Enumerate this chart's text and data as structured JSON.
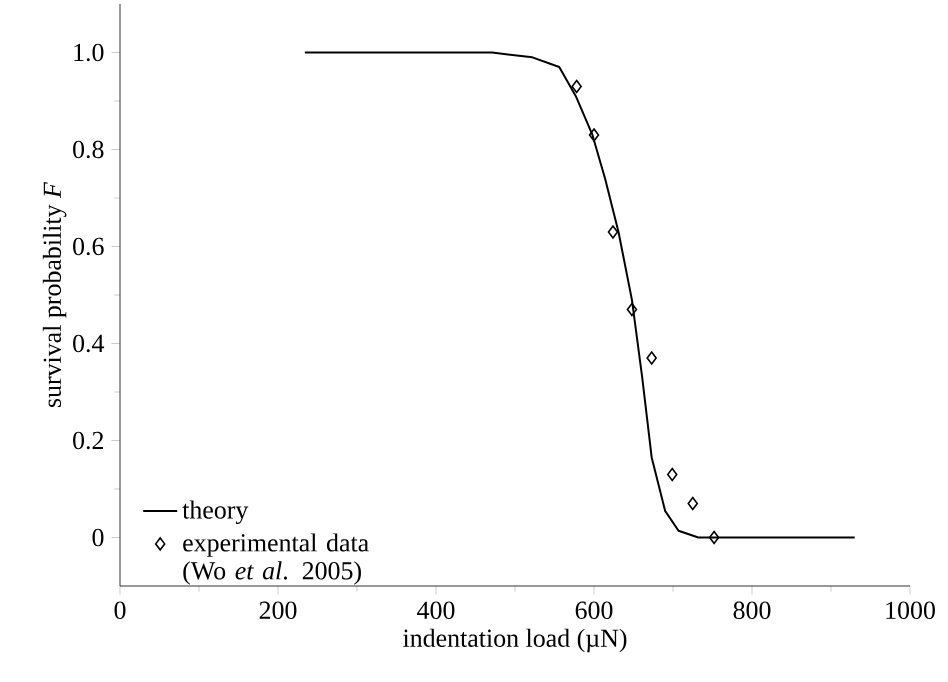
{
  "chart_data": {
    "type": "line",
    "xlabel": "indentation load (µN)",
    "ylabel": "survival probability *F*",
    "xlim": [
      0,
      1000
    ],
    "ylim": [
      -0.1,
      1.1
    ],
    "xticks": [
      0,
      200,
      400,
      600,
      800,
      1000
    ],
    "yticks": [
      0,
      0.2,
      0.4,
      0.6,
      0.8,
      {
        "value": 1.0,
        "label": "1.0"
      }
    ],
    "legend": "bottom left",
    "series": [
      {
        "name": "theory",
        "color": "#000000",
        "marker": "none",
        "line_style": "solid",
        "x": [
          234,
          471,
          522,
          556,
          577,
          598,
          614,
          631,
          648,
          661,
          673,
          690,
          707,
          732,
          930
        ],
        "values": [
          1.0,
          1.0,
          0.99,
          0.97,
          0.91,
          0.83,
          0.74,
          0.63,
          0.49,
          0.33,
          0.165,
          0.055,
          0.014,
          0,
          0
        ]
      },
      {
        "name": "experimental data (Wo *et al*. 2005)",
        "type": "scatter",
        "color": "#000000",
        "marker": "diamond",
        "x": [
          578,
          600,
          624,
          648,
          673,
          699,
          725,
          752
        ],
        "values": [
          0.93,
          0.83,
          0.63,
          0.47,
          0.37,
          0.13,
          0.07,
          0
        ]
      }
    ]
  }
}
